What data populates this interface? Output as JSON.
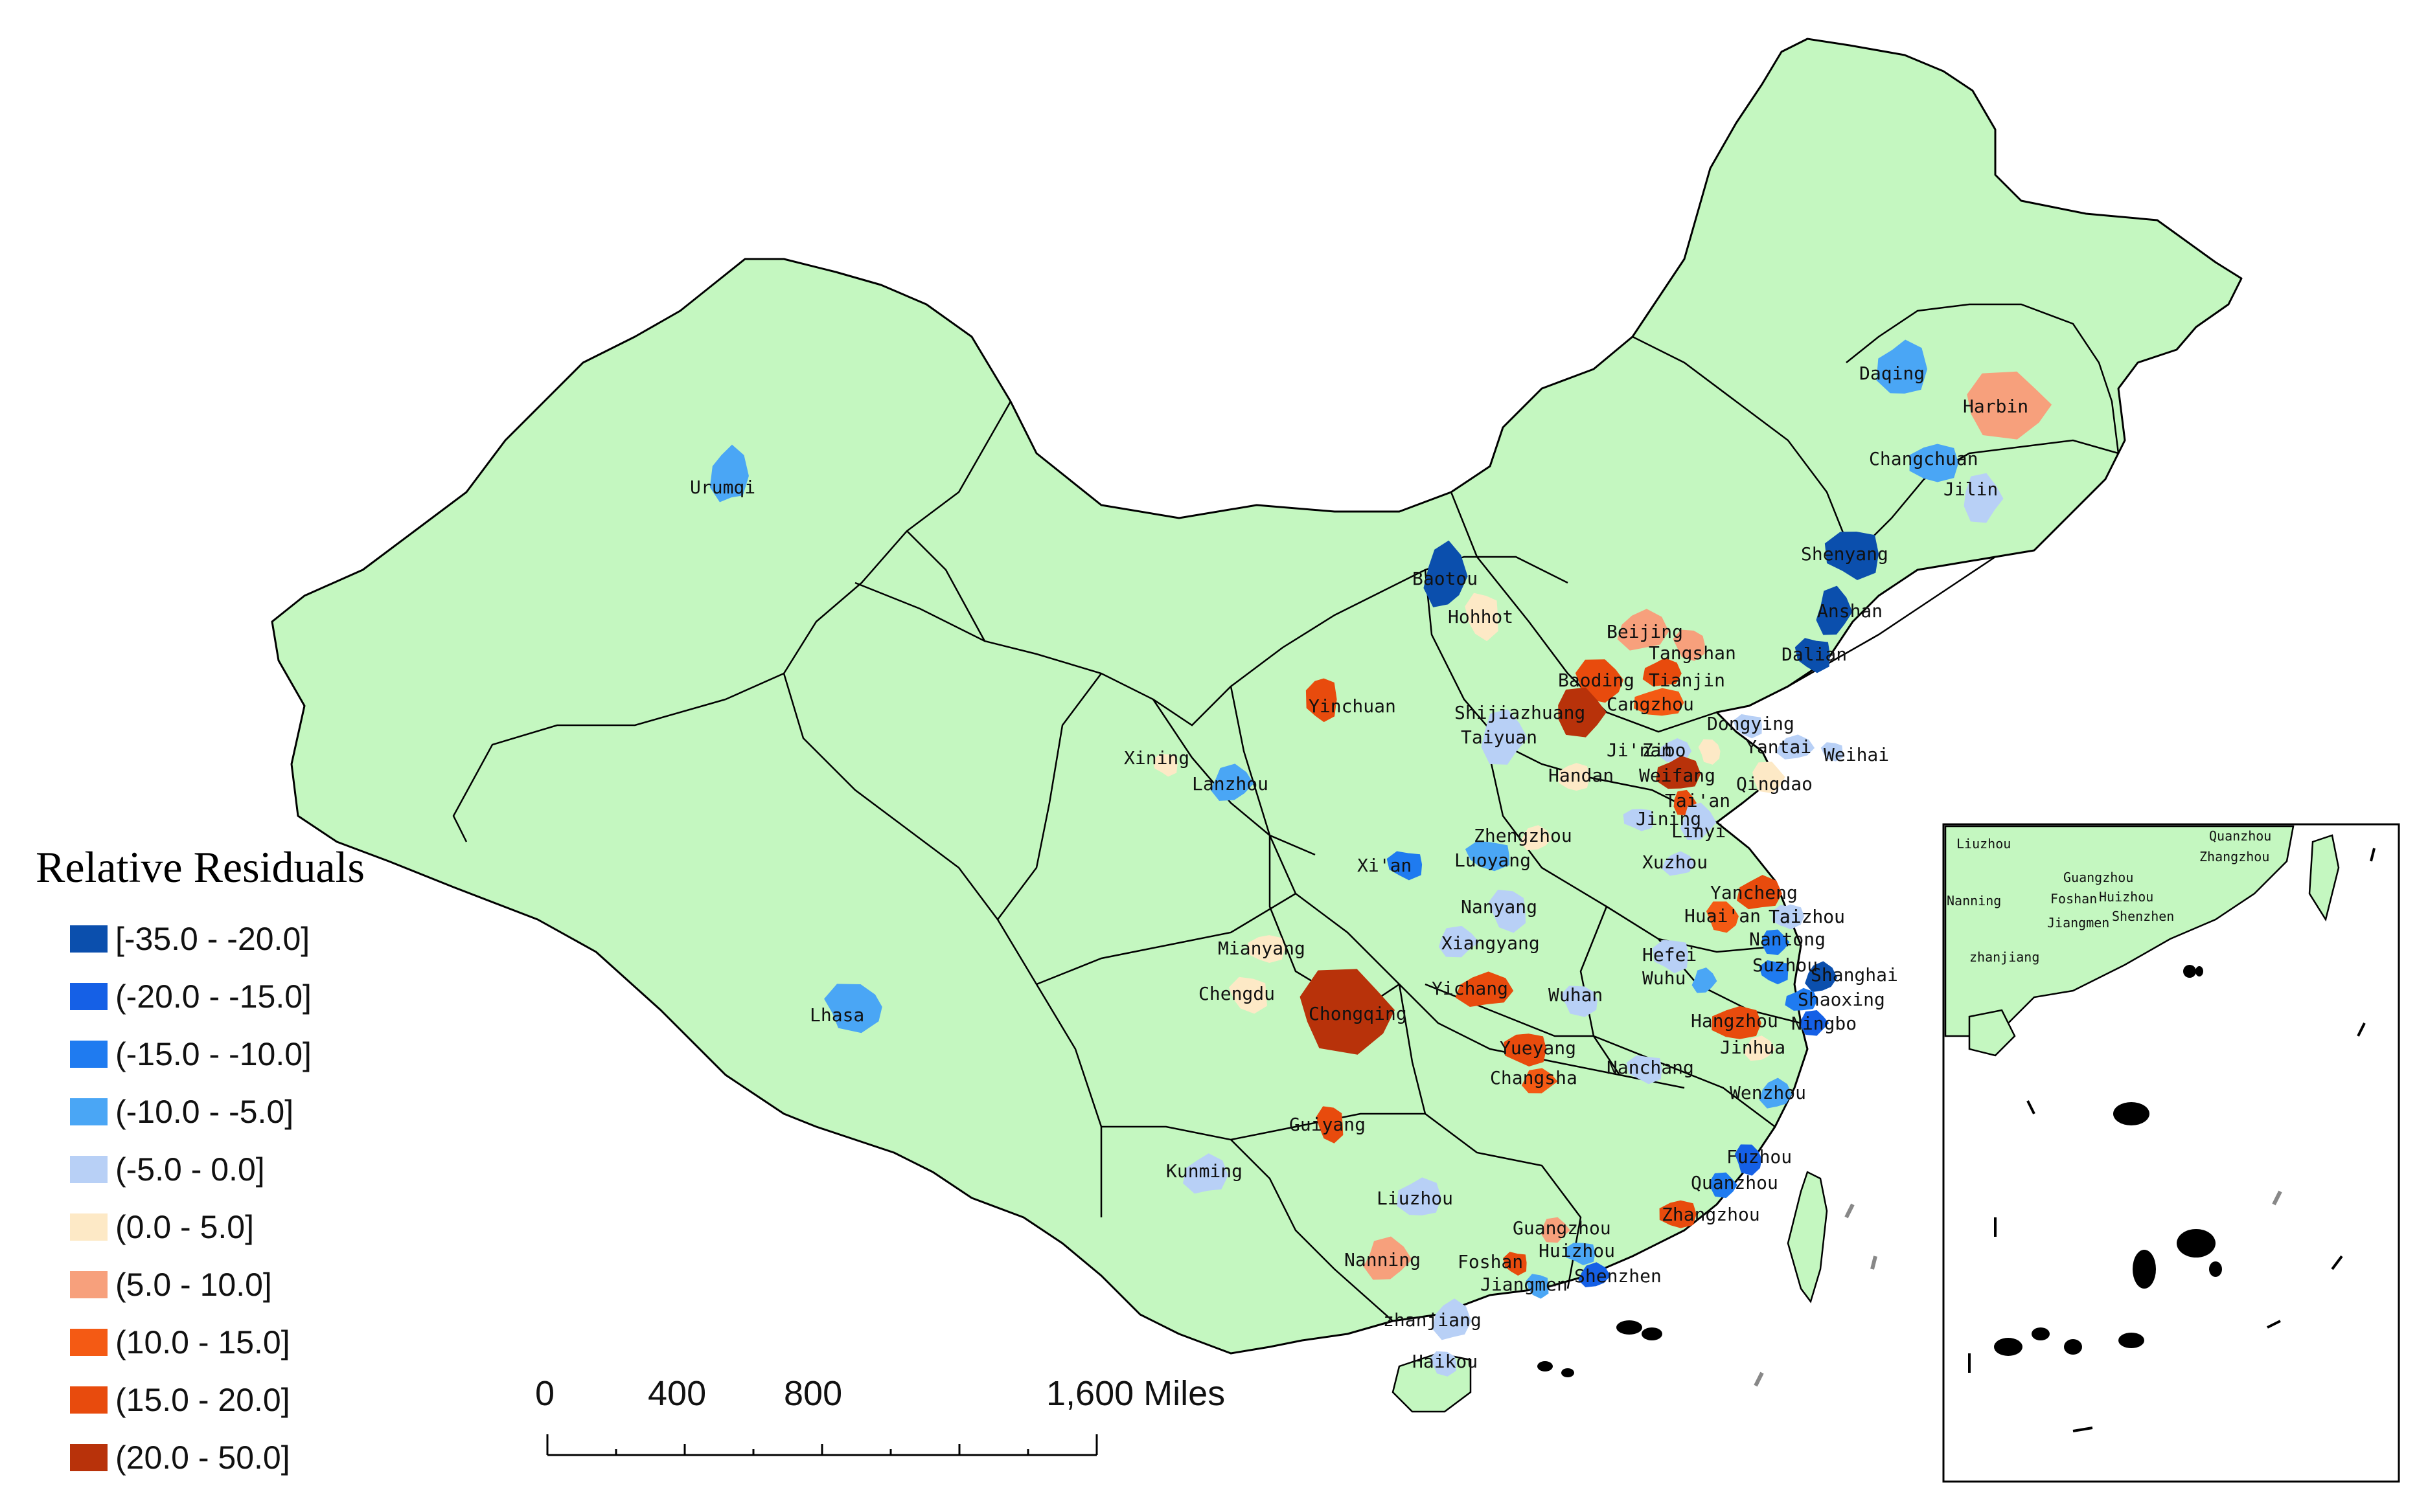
{
  "legend": {
    "title": "Relative Residuals",
    "classes": [
      {
        "label": "[-35.0 - -20.0]",
        "color": "#0b4fad"
      },
      {
        "label": "(-20.0 - -15.0]",
        "color": "#1560e6"
      },
      {
        "label": "(-15.0 - -10.0]",
        "color": "#1f7bf0"
      },
      {
        "label": "(-10.0 - -5.0]",
        "color": "#4aa6f5"
      },
      {
        "label": "(-5.0 - 0.0]",
        "color": "#b8d0f6"
      },
      {
        "label": "(0.0 - 5.0]",
        "color": "#fde9c6"
      },
      {
        "label": "(5.0 - 10.0]",
        "color": "#f7a07c"
      },
      {
        "label": "(10.0 - 15.0]",
        "color": "#f45a14"
      },
      {
        "label": "(15.0 - 20.0]",
        "color": "#e84b0d"
      },
      {
        "label": "(20.0 - 50.0]",
        "color": "#b8320a"
      }
    ]
  },
  "land_color": "#c4f7c0",
  "scale_bar": {
    "ticks": [
      "0",
      "400",
      "800",
      "1,600 Miles"
    ]
  },
  "cities": [
    {
      "name": "Urumqi",
      "cls": 3
    },
    {
      "name": "Lhasa",
      "cls": 3
    },
    {
      "name": "Daqing",
      "cls": 3
    },
    {
      "name": "Harbin",
      "cls": 6
    },
    {
      "name": "Changchuan",
      "cls": 3
    },
    {
      "name": "Jilin",
      "cls": 4
    },
    {
      "name": "Shenyang",
      "cls": 0
    },
    {
      "name": "Anshan",
      "cls": 0
    },
    {
      "name": "Dalian",
      "cls": 0
    },
    {
      "name": "Baotou",
      "cls": 0
    },
    {
      "name": "Hohhot",
      "cls": 5
    },
    {
      "name": "Beijing",
      "cls": 6
    },
    {
      "name": "Tangshan",
      "cls": 6
    },
    {
      "name": "Tianjin",
      "cls": 8
    },
    {
      "name": "Baoding",
      "cls": 8
    },
    {
      "name": "Cangzhou",
      "cls": 7
    },
    {
      "name": "Shijiazhuang",
      "cls": 9
    },
    {
      "name": "Yinchuan",
      "cls": 8
    },
    {
      "name": "Taiyuan",
      "cls": 4
    },
    {
      "name": "Xining",
      "cls": 5
    },
    {
      "name": "Lanzhou",
      "cls": 3
    },
    {
      "name": "Dongying",
      "cls": 4
    },
    {
      "name": "Yantai",
      "cls": 4
    },
    {
      "name": "Weihai",
      "cls": 4
    },
    {
      "name": "Ji'nan",
      "cls": 4
    },
    {
      "name": "Zibo",
      "cls": 5
    },
    {
      "name": "Weifang",
      "cls": 9
    },
    {
      "name": "Qingdao",
      "cls": 5
    },
    {
      "name": "Handan",
      "cls": 5
    },
    {
      "name": "Tai'an",
      "cls": 8
    },
    {
      "name": "Jining",
      "cls": 4
    },
    {
      "name": "Linyi",
      "cls": 4
    },
    {
      "name": "Xi'an",
      "cls": 2
    },
    {
      "name": "Zhengzhou",
      "cls": 5
    },
    {
      "name": "Luoyang",
      "cls": 3
    },
    {
      "name": "Xuzhou",
      "cls": 4
    },
    {
      "name": "Nanyang",
      "cls": 4
    },
    {
      "name": "Yancheng",
      "cls": 8
    },
    {
      "name": "Huai'an",
      "cls": 7
    },
    {
      "name": "Taizhou",
      "cls": 4
    },
    {
      "name": "Nantong",
      "cls": 2
    },
    {
      "name": "Mianyang",
      "cls": 5
    },
    {
      "name": "Xiangyang",
      "cls": 4
    },
    {
      "name": "Hefei",
      "cls": 4
    },
    {
      "name": "Wuhu",
      "cls": 3
    },
    {
      "name": "Suzhou",
      "cls": 2
    },
    {
      "name": "Shanghai",
      "cls": 0
    },
    {
      "name": "Chengdu",
      "cls": 5
    },
    {
      "name": "Yichang",
      "cls": 8
    },
    {
      "name": "Wuhan",
      "cls": 4
    },
    {
      "name": "Shaoxing",
      "cls": 2
    },
    {
      "name": "Chongqing",
      "cls": 9
    },
    {
      "name": "Hangzhou",
      "cls": 8
    },
    {
      "name": "Ningbo",
      "cls": 1
    },
    {
      "name": "Yueyang",
      "cls": 8
    },
    {
      "name": "Changsha",
      "cls": 7
    },
    {
      "name": "Nanchang",
      "cls": 4
    },
    {
      "name": "Jinhua",
      "cls": 5
    },
    {
      "name": "Taizhou",
      "cls": 4
    },
    {
      "name": "Wenzhou",
      "cls": 3
    },
    {
      "name": "Guiyang",
      "cls": 8
    },
    {
      "name": "Kunming",
      "cls": 4
    },
    {
      "name": "Fuzhou",
      "cls": 1
    },
    {
      "name": "Liuzhou",
      "cls": 4
    },
    {
      "name": "Quanzhou",
      "cls": 2
    },
    {
      "name": "Zhangzhou",
      "cls": 8
    },
    {
      "name": "Guangzhou",
      "cls": 6
    },
    {
      "name": "Huizhou",
      "cls": 3
    },
    {
      "name": "Nanning",
      "cls": 6
    },
    {
      "name": "Foshan",
      "cls": 8
    },
    {
      "name": "Shenzhen",
      "cls": 1
    },
    {
      "name": "Jiangmen",
      "cls": 3
    },
    {
      "name": "zhanjiang",
      "cls": 4
    },
    {
      "name": "Haikou",
      "cls": 4
    }
  ],
  "inset": {
    "labels": [
      "Liuzhou",
      "Quanzhou",
      "Zhangzhou",
      "Nanning",
      "Guangzhou",
      "Foshan",
      "Huizhou",
      "Jiangmen",
      "Shenzhen",
      "zhanjiang"
    ]
  }
}
